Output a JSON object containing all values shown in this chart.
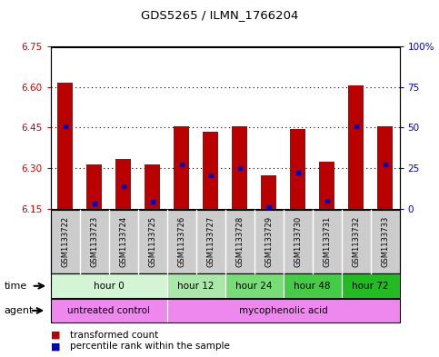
{
  "title": "GDS5265 / ILMN_1766204",
  "samples": [
    "GSM1133722",
    "GSM1133723",
    "GSM1133724",
    "GSM1133725",
    "GSM1133726",
    "GSM1133727",
    "GSM1133728",
    "GSM1133729",
    "GSM1133730",
    "GSM1133731",
    "GSM1133732",
    "GSM1133733"
  ],
  "bar_tops": [
    6.615,
    6.315,
    6.335,
    6.315,
    6.455,
    6.435,
    6.455,
    6.275,
    6.445,
    6.325,
    6.605,
    6.455
  ],
  "bar_bottoms": [
    6.15,
    6.15,
    6.15,
    6.15,
    6.15,
    6.15,
    6.15,
    6.15,
    6.15,
    6.15,
    6.15,
    6.15
  ],
  "blue_dot_y": [
    6.455,
    6.17,
    6.235,
    6.175,
    6.315,
    6.275,
    6.3,
    6.155,
    6.285,
    6.18,
    6.455,
    6.315
  ],
  "ylim": [
    6.15,
    6.75
  ],
  "yticks": [
    6.15,
    6.3,
    6.45,
    6.6,
    6.75
  ],
  "right_yticks_pct": [
    0,
    25,
    50,
    75,
    100
  ],
  "right_ylabels": [
    "0",
    "25",
    "50",
    "75",
    "100%"
  ],
  "bar_color": "#bb0000",
  "blue_color": "#0000bb",
  "axis_label_color_left": "#cc0000",
  "axis_label_color_right": "#0000cc",
  "time_groups": [
    {
      "label": "hour 0",
      "start": 0,
      "end": 4,
      "color": "#d4f5d4"
    },
    {
      "label": "hour 12",
      "start": 4,
      "end": 6,
      "color": "#aae8aa"
    },
    {
      "label": "hour 24",
      "start": 6,
      "end": 8,
      "color": "#77dd77"
    },
    {
      "label": "hour 48",
      "start": 8,
      "end": 10,
      "color": "#44cc44"
    },
    {
      "label": "hour 72",
      "start": 10,
      "end": 12,
      "color": "#22bb22"
    }
  ],
  "agent_groups": [
    {
      "label": "untreated control",
      "start": 0,
      "end": 4,
      "color": "#ee88ee"
    },
    {
      "label": "mycophenolic acid",
      "start": 4,
      "end": 12,
      "color": "#ee88ee"
    }
  ],
  "sample_bg_color": "#cccccc",
  "bg_color": "#ffffff"
}
